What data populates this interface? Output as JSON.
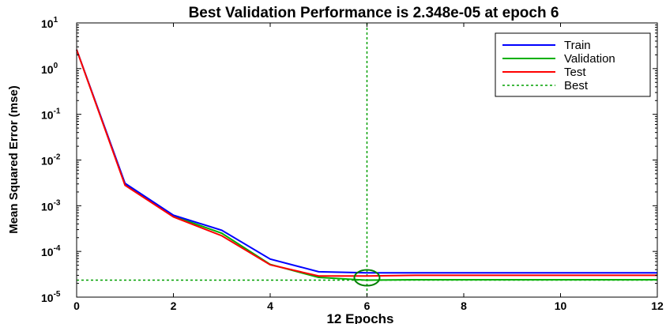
{
  "chart_data": {
    "type": "line",
    "title": "Best Validation Performance is 2.348e-05 at epoch 6",
    "xlabel": "12 Epochs",
    "ylabel": "Mean Squared Error  (mse)",
    "xlim": [
      0,
      12
    ],
    "ylim": [
      1e-05,
      10
    ],
    "yscale": "log",
    "grid": false,
    "legend_position": "top-right",
    "x_ticks": [
      0,
      2,
      4,
      6,
      8,
      10,
      12
    ],
    "y_ticks": [
      {
        "base": "10",
        "exp": "1"
      },
      {
        "base": "10",
        "exp": "0"
      },
      {
        "base": "10",
        "exp": "-1"
      },
      {
        "base": "10",
        "exp": "-2"
      },
      {
        "base": "10",
        "exp": "-3"
      },
      {
        "base": "10",
        "exp": "-4"
      },
      {
        "base": "10",
        "exp": "-5"
      }
    ],
    "y_tick_values": [
      10,
      1,
      0.1,
      0.01,
      0.001,
      0.0001,
      1e-05
    ],
    "x": [
      0,
      1,
      2,
      3,
      4,
      5,
      6,
      7,
      8,
      9,
      10,
      11,
      12
    ],
    "series": [
      {
        "name": "Train",
        "color": "#0000ff",
        "style": "solid",
        "values": [
          2.6,
          0.0031,
          0.00062,
          0.00029,
          6.8e-05,
          3.6e-05,
          3.4e-05,
          3.4e-05,
          3.4e-05,
          3.4e-05,
          3.4e-05,
          3.4e-05,
          3.4e-05
        ]
      },
      {
        "name": "Validation",
        "color": "#00b000",
        "style": "solid",
        "values": [
          2.6,
          0.0029,
          0.00059,
          0.00025,
          5.2e-05,
          2.7e-05,
          2.348e-05,
          2.4e-05,
          2.4e-05,
          2.4e-05,
          2.4e-05,
          2.4e-05,
          2.4e-05
        ]
      },
      {
        "name": "Test",
        "color": "#ff0000",
        "style": "solid",
        "values": [
          2.6,
          0.0028,
          0.00057,
          0.00022,
          5.1e-05,
          2.9e-05,
          2.9e-05,
          3e-05,
          3e-05,
          3e-05,
          3e-05,
          3e-05,
          3e-05
        ]
      },
      {
        "name": "Best",
        "color": "#00a000",
        "style": "dashed",
        "best_epoch": 6,
        "best_value": 2.348e-05
      }
    ],
    "best_marker_color": "#008000"
  }
}
